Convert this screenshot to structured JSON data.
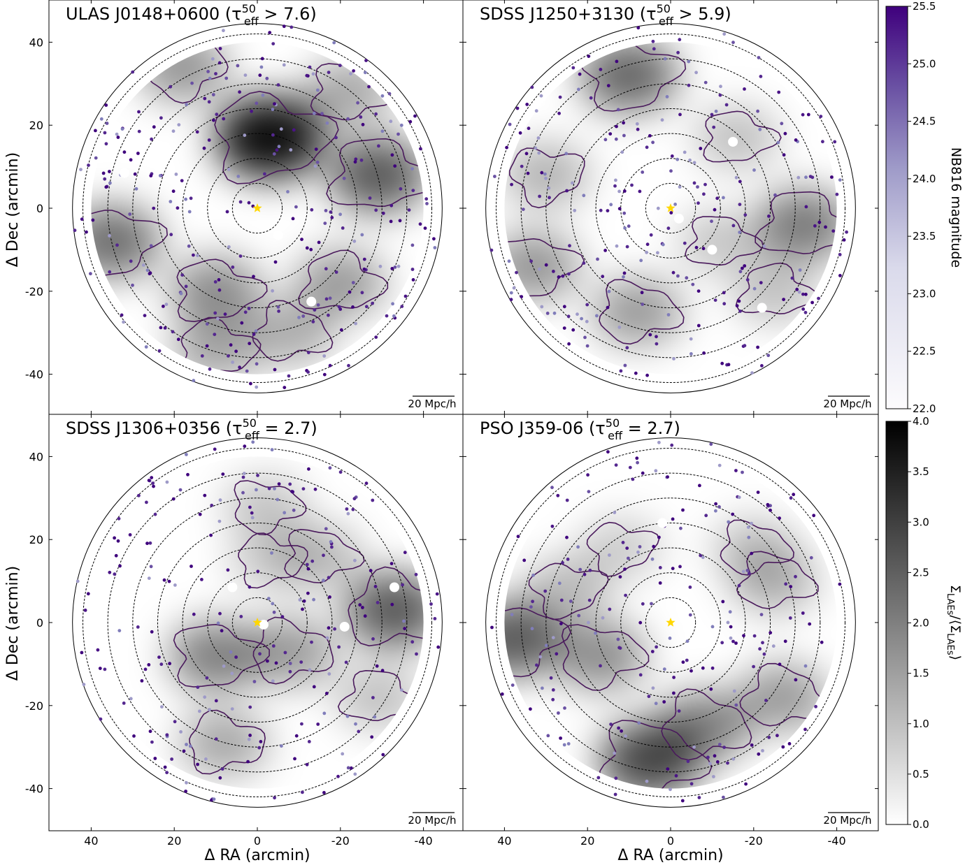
{
  "figure": {
    "xlabel": "Δ RA (arcmin)",
    "ylabel": "Δ Dec (arcmin)",
    "scale_bar_label": "20 Mpc/h"
  },
  "chart_data": [
    {
      "type": "scatter",
      "title": "ULAS J0148+0600 (τ",
      "title_sup": "50",
      "title_sub": "eff",
      "title_tail": " > 7.6)",
      "xlim": [
        50,
        -50
      ],
      "ylim": [
        -50,
        47
      ],
      "x_ticks": [
        40,
        20,
        0,
        -20,
        -40
      ],
      "y_ticks": [
        40,
        20,
        0,
        -20,
        -40
      ],
      "quasar": [
        0,
        0
      ],
      "field_radius_arcmin": 40,
      "outer_circle_radius_arcmin": 44.5,
      "ring_radii_arcmin": [
        6,
        12,
        18,
        24,
        30,
        36,
        42
      ],
      "masked_bright_stars": [
        [
          32,
          8.5
        ],
        [
          -5,
          -6.5
        ],
        [
          -13,
          -22.5
        ]
      ],
      "overdensity_peaks": [
        {
          "x": -3,
          "y": 17,
          "level": 3.8
        },
        {
          "x": -29,
          "y": 8,
          "level": 2.6
        },
        {
          "x": 35,
          "y": -8,
          "level": 2.3
        },
        {
          "x": 10,
          "y": -20,
          "level": 1.8
        },
        {
          "x": -20,
          "y": -18,
          "level": 1.6
        },
        {
          "x": 18,
          "y": 34,
          "level": 1.7
        },
        {
          "x": -22,
          "y": 28,
          "level": 1.4
        },
        {
          "x": 10,
          "y": -34,
          "level": 1.4
        },
        {
          "x": -8,
          "y": -30,
          "level": 1.3
        }
      ],
      "galaxies_count": 290,
      "seed": 11
    },
    {
      "type": "scatter",
      "title": "SDSS J1250+3130 (τ",
      "title_sup": "50",
      "title_sub": "eff",
      "title_tail": " > 5.9)",
      "xlim": [
        50,
        -50
      ],
      "ylim": [
        -50,
        47
      ],
      "x_ticks": [
        40,
        20,
        0,
        -20,
        -40
      ],
      "y_ticks": [
        40,
        20,
        0,
        -20,
        -40
      ],
      "quasar": [
        0,
        0
      ],
      "field_radius_arcmin": 40,
      "outer_circle_radius_arcmin": 44.5,
      "ring_radii_arcmin": [
        6,
        12,
        18,
        24,
        30,
        36,
        42
      ],
      "masked_bright_stars": [
        [
          -2,
          -2.5
        ],
        [
          -10,
          -10
        ],
        [
          -15,
          16
        ],
        [
          -22,
          -24
        ]
      ],
      "overdensity_peaks": [
        {
          "x": 10,
          "y": 32,
          "level": 2.4
        },
        {
          "x": -32,
          "y": -4,
          "level": 2.1
        },
        {
          "x": 33,
          "y": -14,
          "level": 1.7
        },
        {
          "x": 8,
          "y": -25,
          "level": 1.6
        },
        {
          "x": 30,
          "y": 8,
          "level": 1.2
        },
        {
          "x": -16,
          "y": 17,
          "level": 1.0
        },
        {
          "x": -25,
          "y": -20,
          "level": 1.0
        },
        {
          "x": -12,
          "y": -8,
          "level": 0.9
        }
      ],
      "galaxies_count": 255,
      "seed": 23
    },
    {
      "type": "scatter",
      "title": "SDSS J1306+0356 (τ",
      "title_sup": "50",
      "title_sub": "eff",
      "title_tail": " = 2.7)",
      "xlim": [
        50,
        -50
      ],
      "ylim": [
        -50,
        47
      ],
      "x_ticks": [
        40,
        20,
        0,
        -20,
        -40
      ],
      "y_ticks": [
        40,
        20,
        0,
        -20,
        -40
      ],
      "quasar": [
        0,
        0
      ],
      "field_radius_arcmin": 40,
      "outer_circle_radius_arcmin": 44.5,
      "ring_radii_arcmin": [
        6,
        12,
        18,
        24,
        30,
        36,
        42
      ],
      "masked_bright_stars": [
        [
          -1.5,
          -0.5
        ],
        [
          -21,
          -1
        ],
        [
          -33,
          8.5
        ],
        [
          6,
          8.5
        ]
      ],
      "overdensity_peaks": [
        {
          "x": -33,
          "y": 3,
          "level": 2.6
        },
        {
          "x": 10,
          "y": -8,
          "level": 2.0
        },
        {
          "x": -8,
          "y": -7,
          "level": 1.6
        },
        {
          "x": 8,
          "y": -29,
          "level": 1.4
        },
        {
          "x": -15,
          "y": 16,
          "level": 1.1
        },
        {
          "x": -29,
          "y": -18,
          "level": 1.0
        },
        {
          "x": -2,
          "y": 28,
          "level": 0.9
        },
        {
          "x": -3,
          "y": 15,
          "level": 0.8
        }
      ],
      "galaxies_count": 230,
      "seed": 37
    },
    {
      "type": "scatter",
      "title": "PSO J359-06 (τ",
      "title_sup": "50",
      "title_sub": "eff",
      "title_tail": " = 2.7)",
      "xlim": [
        50,
        -50
      ],
      "ylim": [
        -50,
        47
      ],
      "x_ticks": [
        40,
        20,
        0,
        -20,
        -40
      ],
      "y_ticks": [
        40,
        20,
        0,
        -20,
        -40
      ],
      "quasar": [
        0,
        0
      ],
      "field_radius_arcmin": 40,
      "outer_circle_radius_arcmin": 44.5,
      "ring_radii_arcmin": [
        6,
        12,
        18,
        24,
        30,
        36,
        42
      ],
      "masked_bright_stars": [
        [
          2,
          24
        ]
      ],
      "overdensity_peaks": [
        {
          "x": 38,
          "y": -4,
          "level": 2.6
        },
        {
          "x": 5,
          "y": -33,
          "level": 2.9
        },
        {
          "x": -8,
          "y": -25,
          "level": 2.0
        },
        {
          "x": 17,
          "y": -8,
          "level": 1.8
        },
        {
          "x": -27,
          "y": -18,
          "level": 1.6
        },
        {
          "x": -25,
          "y": 10,
          "level": 1.2
        },
        {
          "x": 25,
          "y": 8,
          "level": 1.1
        },
        {
          "x": 12,
          "y": 18,
          "level": 0.8
        },
        {
          "x": -20,
          "y": 18,
          "level": 0.9
        }
      ],
      "galaxies_count": 215,
      "seed": 53
    }
  ],
  "colorbars": [
    {
      "label": "NB816 magnitude",
      "min": 22.0,
      "max": 25.5,
      "ticks": [
        "22.0",
        "22.5",
        "23.0",
        "23.5",
        "24.0",
        "24.5",
        "25.0",
        "25.5"
      ],
      "color_low": "#f8f6fb",
      "color_high": "#3f007d"
    },
    {
      "label": "Σ",
      "label_sub": "LAEs",
      "label_tail": "/⟨Σ",
      "label_sub2": "LAEs",
      "label_end": "⟩",
      "min": 0.0,
      "max": 4.0,
      "ticks": [
        "0.0",
        "0.5",
        "1.0",
        "1.5",
        "2.0",
        "2.5",
        "3.0",
        "3.5",
        "4.0"
      ],
      "color_low": "#ffffff",
      "color_high": "#000000"
    }
  ],
  "colors": {
    "quasar_star": "#ffd700",
    "contour": "#4a1a5c",
    "galaxy_dark": "#3f007d",
    "galaxy_light": "#9e9ac8"
  }
}
